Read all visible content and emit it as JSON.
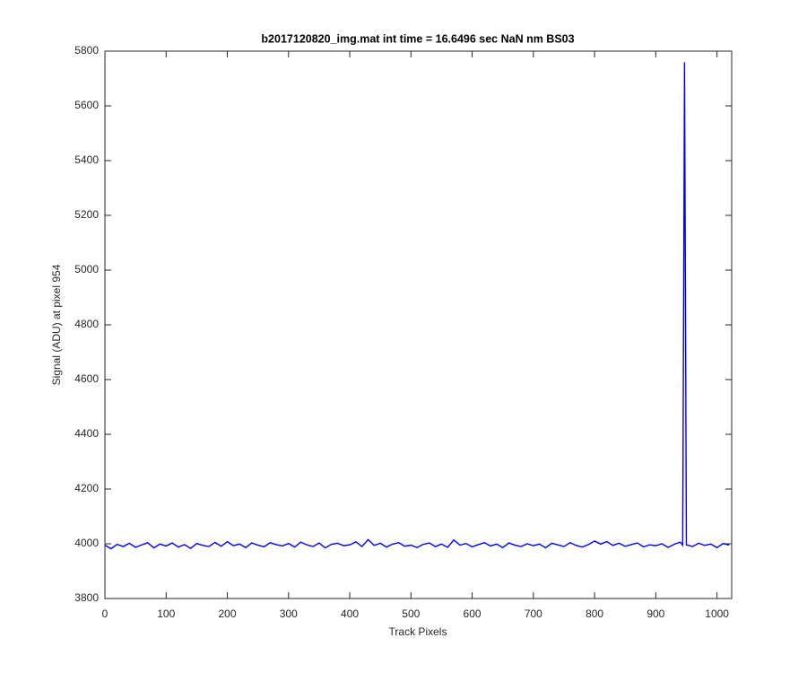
{
  "chart_data": {
    "type": "line",
    "title": "b2017120820_img.mat int time = 16.6496 sec  NaN nm BS03",
    "xlabel": "Track Pixels",
    "ylabel": "Signal (ADU) at pixel 954",
    "color": "#0000ff",
    "x": [
      0,
      10,
      20,
      30,
      40,
      50,
      60,
      70,
      80,
      90,
      100,
      110,
      120,
      130,
      140,
      150,
      160,
      170,
      180,
      190,
      200,
      210,
      220,
      230,
      240,
      250,
      260,
      270,
      280,
      290,
      300,
      310,
      320,
      330,
      340,
      350,
      360,
      370,
      380,
      390,
      400,
      410,
      420,
      430,
      440,
      450,
      460,
      470,
      480,
      490,
      500,
      510,
      520,
      530,
      540,
      550,
      560,
      570,
      580,
      590,
      600,
      610,
      620,
      630,
      640,
      650,
      660,
      670,
      680,
      690,
      700,
      710,
      720,
      730,
      740,
      750,
      760,
      770,
      780,
      790,
      800,
      810,
      820,
      830,
      840,
      850,
      860,
      870,
      880,
      890,
      900,
      910,
      920,
      930,
      940,
      944,
      947,
      950,
      960,
      970,
      980,
      990,
      1000,
      1010,
      1020
    ],
    "values": [
      3995,
      3982,
      3998,
      3990,
      4002,
      3987,
      3996,
      4004,
      3985,
      3999,
      3992,
      4003,
      3988,
      3997,
      3983,
      4001,
      3994,
      3990,
      4005,
      3991,
      4008,
      3993,
      3999,
      3986,
      4003,
      3995,
      3989,
      4004,
      3997,
      3992,
      4001,
      3988,
      4006,
      3996,
      3990,
      4003,
      3985,
      3998,
      4002,
      3993,
      3996,
      4007,
      3990,
      4015,
      3994,
      4002,
      3988,
      3999,
      4004,
      3991,
      3995,
      3986,
      3998,
      4003,
      3990,
      3999,
      3987,
      4014,
      3995,
      4001,
      3989,
      3997,
      4004,
      3992,
      3999,
      3986,
      4003,
      3995,
      3990,
      4000,
      3993,
      3999,
      3985,
      4002,
      3996,
      3990,
      4004,
      3994,
      3988,
      3997,
      4010,
      3999,
      4008,
      3994,
      4002,
      3991,
      3997,
      4003,
      3989,
      3996,
      3993,
      4000,
      3987,
      3998,
      4006,
      3995,
      5760,
      3996,
      3990,
      4002,
      3994,
      3999,
      3986,
      4001,
      3995
    ],
    "xlim": [
      0,
      1024
    ],
    "xticks": [
      0,
      100,
      200,
      300,
      400,
      500,
      600,
      700,
      800,
      900,
      1000
    ],
    "ylim": [
      3800,
      5800
    ],
    "yticks": [
      3800,
      4000,
      4200,
      4400,
      4600,
      4800,
      5000,
      5200,
      5400,
      5600,
      5800
    ]
  }
}
